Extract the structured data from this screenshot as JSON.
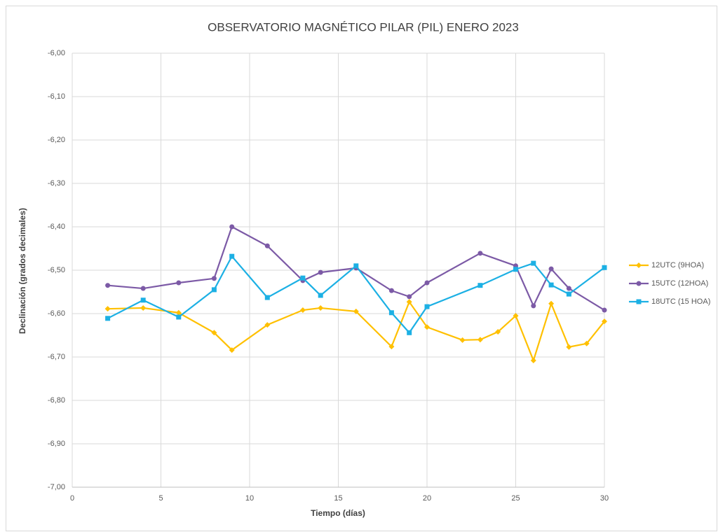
{
  "chart_data": {
    "type": "line",
    "title": "OBSERVATORIO MAGNÉTICO PILAR (PIL) ENERO 2023",
    "x_label": "Tiempo (días)",
    "y_label": "Declinación (grados decimales)",
    "xlim": [
      0,
      30
    ],
    "xticks": [
      0,
      5,
      10,
      15,
      20,
      25,
      30
    ],
    "ylim": [
      -7,
      -6
    ],
    "yticks": [
      {
        "value": -7,
        "label": "-7,00"
      },
      {
        "value": -6.9,
        "label": "-6,90"
      },
      {
        "value": -6.8,
        "label": "-6,80"
      },
      {
        "value": -6.7,
        "label": "-6,70"
      },
      {
        "value": -6.6,
        "label": "-6,60"
      },
      {
        "value": -6.5,
        "label": "-6,50"
      },
      {
        "value": -6.4,
        "label": "-6,40"
      },
      {
        "value": -6.3,
        "label": "-6,30"
      },
      {
        "value": -6.2,
        "label": "-6,20"
      },
      {
        "value": -6.1,
        "label": "-6,10"
      },
      {
        "value": -6,
        "label": "-6,00"
      }
    ],
    "grid": true,
    "legend": "right",
    "series": [
      {
        "name": "12UTC (9HOA)",
        "color": "#ffc000",
        "marker": "diamond",
        "x": [
          2,
          4,
          6,
          8,
          9,
          11,
          13,
          14,
          16,
          18,
          19,
          20,
          22,
          23,
          24,
          25,
          26,
          27,
          28,
          29,
          30
        ],
        "values": [
          -6.589,
          -6.587,
          -6.598,
          -6.644,
          -6.684,
          -6.626,
          -6.592,
          -6.587,
          -6.595,
          -6.676,
          -6.573,
          -6.631,
          -6.661,
          -6.66,
          -6.642,
          -6.605,
          -6.708,
          -6.577,
          -6.677,
          -6.669,
          -6.618
        ]
      },
      {
        "name": "15UTC (12HOA)",
        "color": "#7c5aa6",
        "marker": "circle",
        "x": [
          2,
          4,
          6,
          8,
          9,
          11,
          13,
          14,
          16,
          18,
          19,
          20,
          23,
          25,
          26,
          27,
          28,
          30
        ],
        "values": [
          -6.535,
          -6.542,
          -6.529,
          -6.519,
          -6.4,
          -6.444,
          -6.524,
          -6.505,
          -6.495,
          -6.547,
          -6.561,
          -6.529,
          -6.461,
          -6.49,
          -6.582,
          -6.497,
          -6.542,
          -6.592
        ]
      },
      {
        "name": "18UTC (15 HOA)",
        "color": "#1cb0e4",
        "marker": "square",
        "x": [
          2,
          4,
          6,
          8,
          9,
          11,
          13,
          14,
          16,
          18,
          19,
          20,
          23,
          25,
          26,
          27,
          28,
          30
        ],
        "values": [
          -6.611,
          -6.569,
          -6.608,
          -6.545,
          -6.468,
          -6.563,
          -6.518,
          -6.558,
          -6.49,
          -6.598,
          -6.644,
          -6.584,
          -6.535,
          -6.498,
          -6.484,
          -6.534,
          -6.555,
          -6.494
        ]
      }
    ]
  }
}
